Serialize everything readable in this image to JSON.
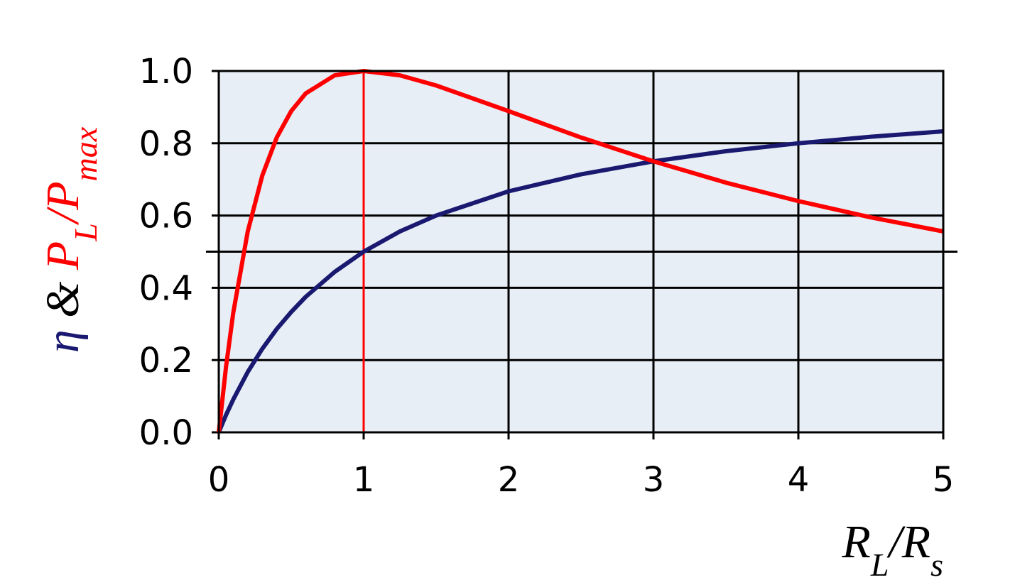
{
  "chart_data": {
    "type": "line",
    "x": [
      0,
      0.05,
      0.1,
      0.2,
      0.3,
      0.4,
      0.5,
      0.6,
      0.8,
      1,
      1.25,
      1.5,
      2,
      2.5,
      3,
      3.5,
      4,
      4.5,
      5
    ],
    "series": [
      {
        "name": "η",
        "color": "#191970",
        "values": [
          0,
          0.048,
          0.091,
          0.167,
          0.231,
          0.286,
          0.333,
          0.375,
          0.444,
          0.5,
          0.556,
          0.6,
          0.667,
          0.714,
          0.75,
          0.778,
          0.8,
          0.818,
          0.833
        ]
      },
      {
        "name": "P_L/P_max",
        "color": "#ff0000",
        "values": [
          0,
          0.181,
          0.331,
          0.556,
          0.71,
          0.816,
          0.889,
          0.938,
          0.988,
          1,
          0.988,
          0.96,
          0.889,
          0.816,
          0.75,
          0.691,
          0.64,
          0.595,
          0.556
        ]
      }
    ],
    "xlabel": [
      {
        "text": "R",
        "color": "#000000",
        "sub": false
      },
      {
        "text": "L",
        "color": "#000000",
        "sub": true
      },
      {
        "text": "/R",
        "color": "#000000",
        "sub": false
      },
      {
        "text": "s",
        "color": "#000000",
        "sub": true
      }
    ],
    "ylabel": [
      {
        "text": "η",
        "color": "#191970",
        "sub": false
      },
      {
        "text": " & ",
        "color": "#000000",
        "sub": false
      },
      {
        "text": "P",
        "color": "#ff0000",
        "sub": false
      },
      {
        "text": "L",
        "color": "#ff0000",
        "sub": true
      },
      {
        "text": "/P",
        "color": "#ff0000",
        "sub": false
      },
      {
        "text": "max",
        "color": "#ff0000",
        "sub": true
      }
    ],
    "xlim": [
      0,
      5
    ],
    "xticks": [
      0,
      1,
      2,
      3,
      4,
      5
    ],
    "ylim": [
      0,
      1
    ],
    "yticks": [
      {
        "value": 0,
        "label": "0.0"
      },
      0.2,
      0.4,
      0.6,
      0.8,
      {
        "value": 1,
        "label": "1.0"
      }
    ],
    "grid": true,
    "background": "#e8eef6",
    "vlines": [
      {
        "x": 1,
        "color": "#ff0000"
      }
    ],
    "hlines": [
      {
        "y": 0.5,
        "color": "#000000"
      }
    ]
  }
}
